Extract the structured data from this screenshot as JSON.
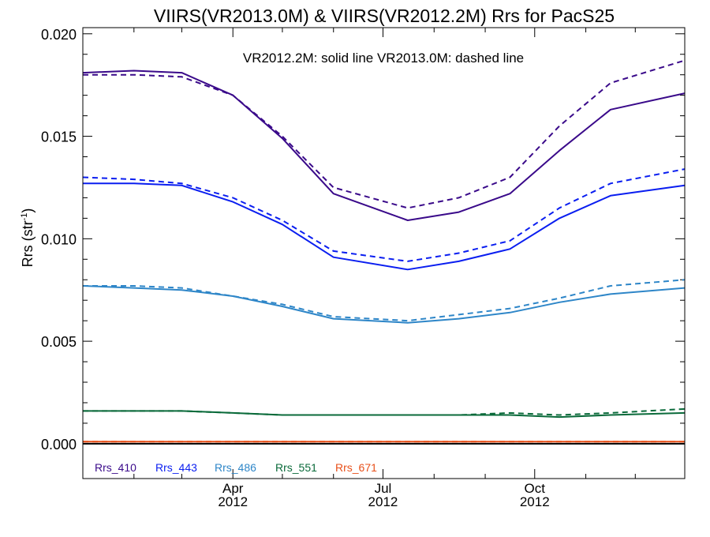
{
  "chart_data": {
    "type": "line",
    "title": "VIIRS(VR2013.0M) & VIIRS(VR2012.2M)  Rrs for PacS25",
    "annotation": "VR2012.2M: solid line   VR2013.0M: dashed line",
    "ylabel_main": "Rrs (str",
    "ylabel_sup": "-1",
    "ylabel_close": ")",
    "ylim": [
      -0.0017,
      0.0203
    ],
    "yticks": [
      0.0,
      0.005,
      0.01,
      0.015,
      0.02
    ],
    "ytick_labels": [
      "0.000",
      "0.005",
      "0.010",
      "0.015",
      "0.020"
    ],
    "xlim": [
      "2012-01-01",
      "2012-12-31"
    ],
    "xticks": [
      {
        "date": "2012-04-01",
        "month": "Apr",
        "year": "2012"
      },
      {
        "date": "2012-07-01",
        "month": "Jul",
        "year": "2012"
      },
      {
        "date": "2012-10-01",
        "month": "Oct",
        "year": "2012"
      }
    ],
    "x": [
      "2012-01-01",
      "2012-02-01",
      "2012-03-01",
      "2012-04-01",
      "2012-05-01",
      "2012-06-01",
      "2012-07-16",
      "2012-08-16",
      "2012-09-16",
      "2012-10-16",
      "2012-11-16",
      "2012-12-31"
    ],
    "zero_line": true,
    "legend_position": "bottom-left",
    "series": [
      {
        "name": "Rrs_410",
        "color": "#3a0a8a",
        "solid": [
          0.0181,
          0.0182,
          0.0181,
          0.017,
          0.0149,
          0.0122,
          0.0109,
          0.0113,
          0.0122,
          0.0143,
          0.0163,
          0.0171
        ],
        "dashed": [
          0.018,
          0.018,
          0.0179,
          0.017,
          0.015,
          0.0125,
          0.0115,
          0.012,
          0.013,
          0.0155,
          0.0176,
          0.0187
        ]
      },
      {
        "name": "Rrs_443",
        "color": "#0a1ef0",
        "solid": [
          0.0127,
          0.0127,
          0.0126,
          0.0118,
          0.0107,
          0.0091,
          0.0085,
          0.0089,
          0.0095,
          0.011,
          0.0121,
          0.0126
        ],
        "dashed": [
          0.013,
          0.0129,
          0.0127,
          0.012,
          0.0109,
          0.0094,
          0.0089,
          0.0093,
          0.0099,
          0.0115,
          0.0127,
          0.0134
        ]
      },
      {
        "name": "Rrs_486",
        "color": "#2e86c8",
        "solid": [
          0.0077,
          0.0076,
          0.0075,
          0.0072,
          0.0067,
          0.0061,
          0.0059,
          0.0061,
          0.0064,
          0.0069,
          0.0073,
          0.0076
        ],
        "dashed": [
          0.0077,
          0.0077,
          0.0076,
          0.0072,
          0.0068,
          0.0062,
          0.006,
          0.0063,
          0.0066,
          0.0071,
          0.0077,
          0.008
        ]
      },
      {
        "name": "Rrs_551",
        "color": "#0a6a3a",
        "solid": [
          0.0016,
          0.0016,
          0.0016,
          0.0015,
          0.0014,
          0.0014,
          0.0014,
          0.0014,
          0.0014,
          0.0013,
          0.0014,
          0.0015
        ],
        "dashed": [
          0.0016,
          0.0016,
          0.0016,
          0.0015,
          0.0014,
          0.0014,
          0.0014,
          0.0014,
          0.0015,
          0.0014,
          0.0015,
          0.0017
        ]
      },
      {
        "name": "Rrs_671",
        "color": "#e8501a",
        "solid": [
          0.0001,
          0.0001,
          0.0001,
          0.0001,
          0.0001,
          0.0001,
          0.0001,
          0.0001,
          0.0001,
          0.0001,
          0.0001,
          0.0001
        ],
        "dashed": [
          0.0001,
          0.0001,
          0.0001,
          0.0001,
          0.0001,
          0.0001,
          0.0001,
          0.0001,
          0.0001,
          0.0001,
          0.0001,
          0.0001
        ]
      }
    ]
  }
}
